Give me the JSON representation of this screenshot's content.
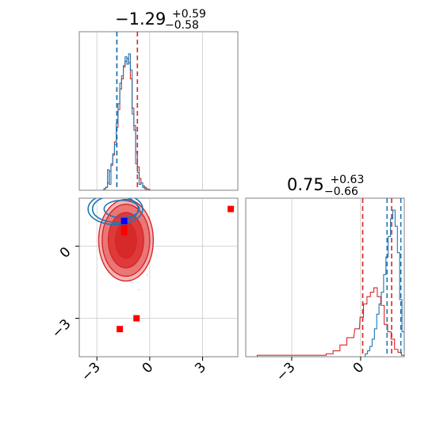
{
  "chart_data": {
    "type": "corner",
    "parameters": 2,
    "titles": [
      {
        "value": "−1.29",
        "upper": "+0.59",
        "lower": "−0.58"
      },
      {
        "value": "0.75",
        "upper": "+0.63",
        "lower": "−0.66"
      }
    ],
    "xlim": [
      -4.0,
      5.0
    ],
    "y_param1_lim": [
      -4.6,
      2.0
    ],
    "x_param2_lim": [
      -5.0,
      1.9
    ],
    "x_tick_labels": [
      "−3",
      "0",
      "3"
    ],
    "x_tick_values": [
      -3,
      0,
      3
    ],
    "y_tick_labels": [
      "0",
      "−3"
    ],
    "y_tick_values": [
      0,
      -3
    ],
    "diag2_tick_labels": [
      "−3",
      "0"
    ],
    "diag2_tick_values": [
      -3,
      0
    ],
    "grid": true,
    "colors": {
      "blue": "#1f77b4",
      "red": "#d62728",
      "marker_blue": "#0000ff",
      "marker_red": "#ff0000",
      "scatter": "#c8c8c8",
      "grid": "#c8c8c8",
      "axes": "#808080"
    },
    "series": [
      {
        "color": "blue",
        "param1_quantiles": [
          -1.87,
          -1.87
        ],
        "param2_quantiles": [
          1.15,
          1.75
        ],
        "param1_hist": {
          "bins": [
            -2.55,
            -2.45,
            -2.35,
            -2.25,
            -2.15,
            -2.05,
            -1.95,
            -1.85,
            -1.75,
            -1.65,
            -1.55,
            -1.45,
            -1.35,
            -1.25,
            -1.15,
            -1.05,
            -0.95,
            -0.85,
            -0.75,
            -0.65,
            -0.55,
            -0.45,
            -0.35,
            -0.25
          ],
          "counts": [
            0.01,
            0.02,
            0.14,
            0.04,
            0.18,
            0.25,
            0.31,
            0.46,
            0.59,
            0.73,
            0.78,
            0.85,
            0.91,
            0.86,
            0.93,
            0.82,
            0.52,
            0.41,
            0.18,
            0.12,
            0.04,
            0.05,
            0.02,
            0.01
          ]
        },
        "param2_hist": {
          "bins": [
            0.25,
            0.35,
            0.45,
            0.55,
            0.65,
            0.75,
            0.85,
            0.95,
            1.05,
            1.15,
            1.25,
            1.35,
            1.45,
            1.55,
            1.65,
            1.75,
            1.85,
            1.95
          ],
          "counts": [
            0.02,
            0.04,
            0.07,
            0.12,
            0.19,
            0.29,
            0.36,
            0.44,
            0.56,
            0.68,
            0.82,
            0.94,
            1.0,
            0.89,
            0.71,
            0.39,
            0.17,
            0.04
          ]
        },
        "contour": {
          "center": [
            -1.95,
            1.55
          ],
          "levels": [
            [
              1.3,
              0.55
            ],
            [
              1.55,
              0.65
            ],
            [
              1.0,
              0.36
            ]
          ]
        }
      },
      {
        "color": "red",
        "param1_quantiles": [
          -1.87,
          -0.7
        ],
        "param2_quantiles": [
          0.09,
          1.35
        ],
        "param1_hist": {
          "bins": [
            -2.55,
            -2.45,
            -2.35,
            -2.25,
            -2.15,
            -2.05,
            -1.95,
            -1.85,
            -1.75,
            -1.65,
            -1.55,
            -1.45,
            -1.35,
            -1.25,
            -1.15,
            -1.05,
            -0.95,
            -0.85,
            -0.75,
            -0.65,
            -0.55,
            -0.45,
            -0.35,
            -0.25,
            -0.15,
            -0.05
          ],
          "counts": [
            0.01,
            0.02,
            0.05,
            0.13,
            0.17,
            0.24,
            0.33,
            0.43,
            0.55,
            0.69,
            0.76,
            0.84,
            0.88,
            0.9,
            0.87,
            0.76,
            0.56,
            0.44,
            0.26,
            0.16,
            0.08,
            0.05,
            0.03,
            0.02,
            0.01,
            0.005
          ]
        },
        "param2_hist": {
          "bins": [
            -4.25,
            -3.75,
            -2.25,
            -1.65,
            -1.35,
            -1.05,
            -0.75,
            -0.45,
            -0.15,
            0.05,
            0.2,
            0.35,
            0.5,
            0.65,
            0.8,
            0.95,
            1.1,
            1.25,
            1.4,
            1.55,
            1.7,
            1.85
          ],
          "counts": [
            0.01,
            0.01,
            0.01,
            0.01,
            0.02,
            0.04,
            0.08,
            0.13,
            0.19,
            0.27,
            0.36,
            0.41,
            0.44,
            0.47,
            0.41,
            0.35,
            0.22,
            0.17,
            0.12,
            0.05,
            0.03,
            0.01
          ]
        },
        "contour": {
          "center": [
            -1.35,
            0.25
          ],
          "levels": [
            [
              1.55,
              1.7
            ],
            [
              1.35,
              1.5
            ],
            [
              1.0,
              1.15
            ],
            [
              0.6,
              0.75
            ]
          ]
        }
      }
    ],
    "markers": [
      {
        "color": "marker_blue",
        "x": -1.45,
        "y": 1.05
      },
      {
        "color": "marker_red",
        "x": -1.45,
        "y": 0.58
      },
      {
        "color": "marker_red",
        "x": -1.45,
        "y": 0.75
      },
      {
        "color": "marker_red",
        "x": 4.6,
        "y": 1.55
      },
      {
        "color": "marker_red",
        "x": -0.75,
        "y": -3.0
      },
      {
        "color": "marker_red",
        "x": -1.7,
        "y": -3.45
      }
    ]
  }
}
